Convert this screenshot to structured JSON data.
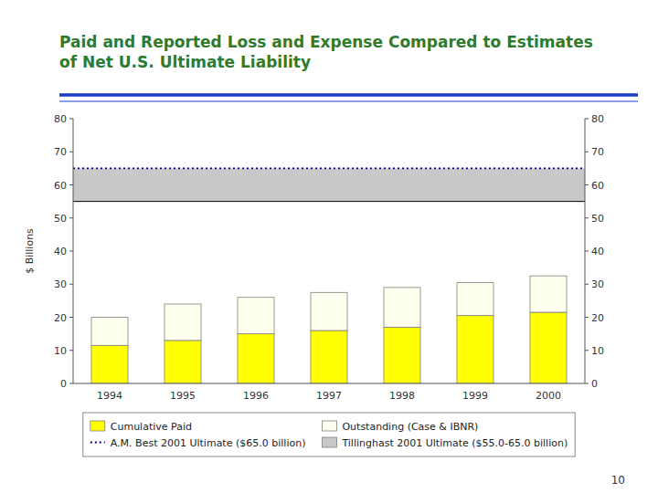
{
  "chart_data": {
    "type": "bar",
    "title": [
      "Paid and Reported Loss and Expense Compared to Estimates",
      "of Net U.S. Ultimate Liability"
    ],
    "ylabel": "$ Billions",
    "categories": [
      "1994",
      "1995",
      "1996",
      "1997",
      "1998",
      "1999",
      "2000"
    ],
    "series": [
      {
        "name": "Cumulative Paid",
        "color": "#ffff00",
        "values": [
          11.5,
          13.0,
          15.0,
          16.0,
          17.0,
          20.5,
          21.5
        ]
      },
      {
        "name": "Outstanding (Case & IBNR)",
        "color": "#fffff0",
        "values": [
          8.5,
          11.0,
          11.0,
          11.5,
          12.0,
          10.0,
          11.0
        ]
      }
    ],
    "stacked": true,
    "reference_lines": [
      {
        "name": "A.M. Best 2001 Ultimate ($65.0 billion)",
        "value": 65.0,
        "color": "#00008b",
        "line_style": "dotted"
      }
    ],
    "bands": [
      {
        "name": "Tillinghast 2001 Ultimate ($55.0-65.0 billion)",
        "low": 55.0,
        "high": 65.0,
        "color": "#c8c8c8"
      }
    ],
    "ylim": [
      0,
      80
    ],
    "yticks": [
      0,
      10,
      20,
      30,
      40,
      50,
      60,
      70,
      80
    ],
    "y2lim": [
      0,
      80
    ],
    "y2ticks": [
      0,
      10,
      20,
      30,
      40,
      50,
      60,
      70,
      80
    ],
    "grid": false,
    "legend": "bottom",
    "annotations": [
      {
        "text": "10"
      }
    ]
  }
}
